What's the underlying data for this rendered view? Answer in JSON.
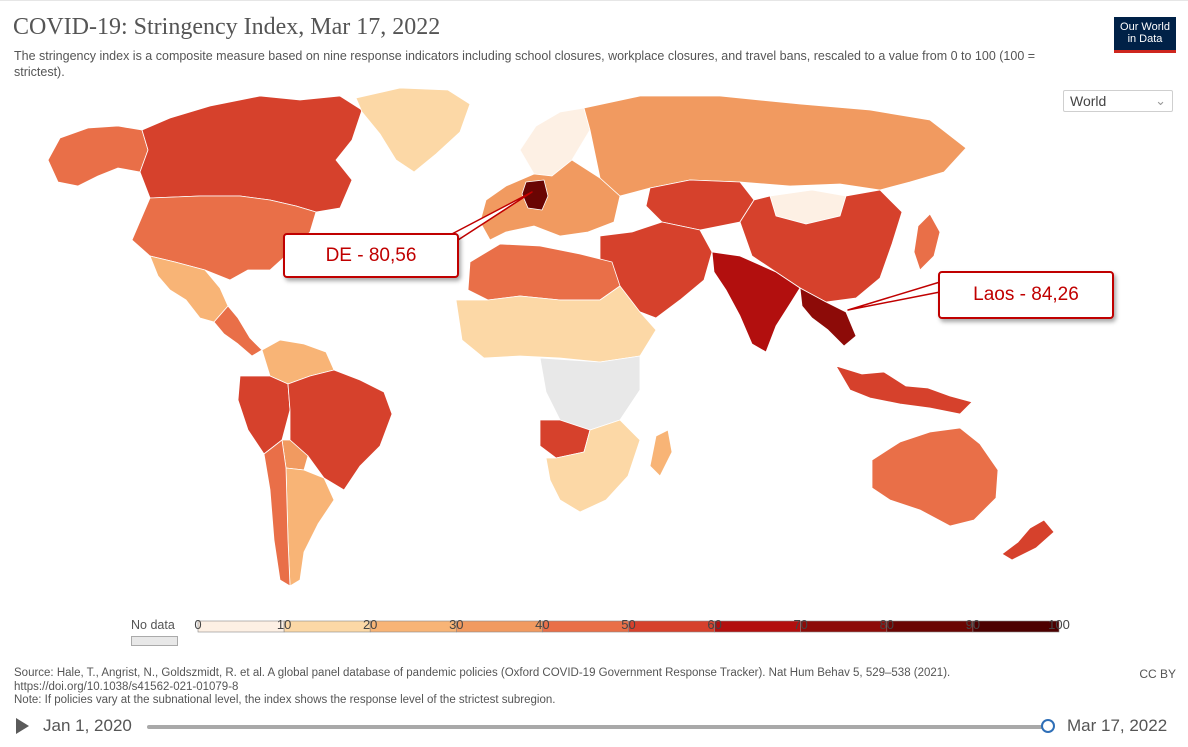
{
  "header": {
    "title": "COVID-19: Stringency Index, Mar 17, 2022",
    "subtitle": "The stringency index is a composite measure based on nine response indicators including school closures, workplace closures, and travel bans, rescaled to a value from 0 to 100 (100 = strictest).",
    "logo_line1": "Our World",
    "logo_line2": "in Data"
  },
  "region_select": {
    "value": "World"
  },
  "legend": {
    "no_data_label": "No data",
    "ticks": [
      "0",
      "10",
      "20",
      "30",
      "40",
      "50",
      "60",
      "70",
      "80",
      "90",
      "100"
    ],
    "colors": [
      "#fdf0e4",
      "#fcd8a6",
      "#f8b476",
      "#f19a60",
      "#e96f48",
      "#d6412c",
      "#b20f0e",
      "#8d0b08",
      "#6a0503",
      "#4d0000"
    ],
    "no_data_color": "#e8e8e8"
  },
  "annotations": [
    {
      "text": "DE - 80,56",
      "country": "Germany"
    },
    {
      "text": "Laos - 84,26",
      "country": "Laos"
    }
  ],
  "footer": {
    "source": "Source: Hale, T., Angrist, N., Goldszmidt, R. et al. A global panel database of pandemic policies (Oxford COVID-19 Government Response Tracker). Nat Hum Behav 5, 529–538 (2021). https://doi.org/10.1038/s41562-021-01079-8",
    "note": "Note: If policies vary at the subnational level, the index shows the response level of the strictest subregion.",
    "license": "CC BY"
  },
  "timeline": {
    "start": "Jan 1, 2020",
    "end": "Mar 17, 2022",
    "position": 1.0
  },
  "map_data": {
    "regions": [
      {
        "name": "Greenland",
        "band": "10-20",
        "color": "#fcd8a6"
      },
      {
        "name": "Canada",
        "band": "60-70",
        "color": "#d6412c"
      },
      {
        "name": "Alaska",
        "band": "50-60",
        "color": "#e96f48"
      },
      {
        "name": "United States",
        "band": "50-60",
        "color": "#e96f48"
      },
      {
        "name": "Mexico",
        "band": "20-30",
        "color": "#f8b476"
      },
      {
        "name": "Central America",
        "band": "50-60",
        "color": "#e96f48"
      },
      {
        "name": "Colombia / Venezuela",
        "band": "20-30",
        "color": "#f8b476"
      },
      {
        "name": "Peru",
        "band": "60-70",
        "color": "#d6412c"
      },
      {
        "name": "Brazil",
        "band": "60-70",
        "color": "#d6412c"
      },
      {
        "name": "Bolivia",
        "band": "40-50",
        "color": "#f19a60"
      },
      {
        "name": "Argentina",
        "band": "30-40",
        "color": "#f8b476"
      },
      {
        "name": "Chile",
        "band": "50-60",
        "color": "#e96f48"
      },
      {
        "name": "Russia",
        "band": "40-50",
        "color": "#f19a60"
      },
      {
        "name": "Germany",
        "band": "80-90",
        "color": "#6a0503"
      },
      {
        "name": "Europe",
        "band": "40-50",
        "color": "#f19a60"
      },
      {
        "name": "Nordics",
        "band": "0-10",
        "color": "#fdf0e4"
      },
      {
        "name": "Kazakhstan",
        "band": "60-70",
        "color": "#d6412c"
      },
      {
        "name": "Mongolia",
        "band": "0-10",
        "color": "#fdf0e4"
      },
      {
        "name": "China",
        "band": "60-70",
        "color": "#d6412c"
      },
      {
        "name": "India",
        "band": "70-80",
        "color": "#b20f0e"
      },
      {
        "name": "Laos / Myanmar",
        "band": "80-90",
        "color": "#8d0b08"
      },
      {
        "name": "Iran / Middle East",
        "band": "60-70",
        "color": "#d6412c"
      },
      {
        "name": "North Africa",
        "band": "40-50",
        "color": "#e96f48"
      },
      {
        "name": "Sahara / Sahel",
        "band": "20-30",
        "color": "#fcd8a6"
      },
      {
        "name": "Central Africa",
        "band": "no data",
        "color": "#e8e8e8"
      },
      {
        "name": "Angola",
        "band": "60-70",
        "color": "#d6412c"
      },
      {
        "name": "Southern Africa",
        "band": "20-30",
        "color": "#fcd8a6"
      },
      {
        "name": "Madagascar",
        "band": "30-40",
        "color": "#f8b476"
      },
      {
        "name": "Indonesia",
        "band": "60-70",
        "color": "#d6412c"
      },
      {
        "name": "Australia",
        "band": "50-60",
        "color": "#e96f48"
      },
      {
        "name": "New Zealand",
        "band": "60-70",
        "color": "#d6412c"
      },
      {
        "name": "Japan",
        "band": "50-60",
        "color": "#e96f48"
      }
    ]
  }
}
